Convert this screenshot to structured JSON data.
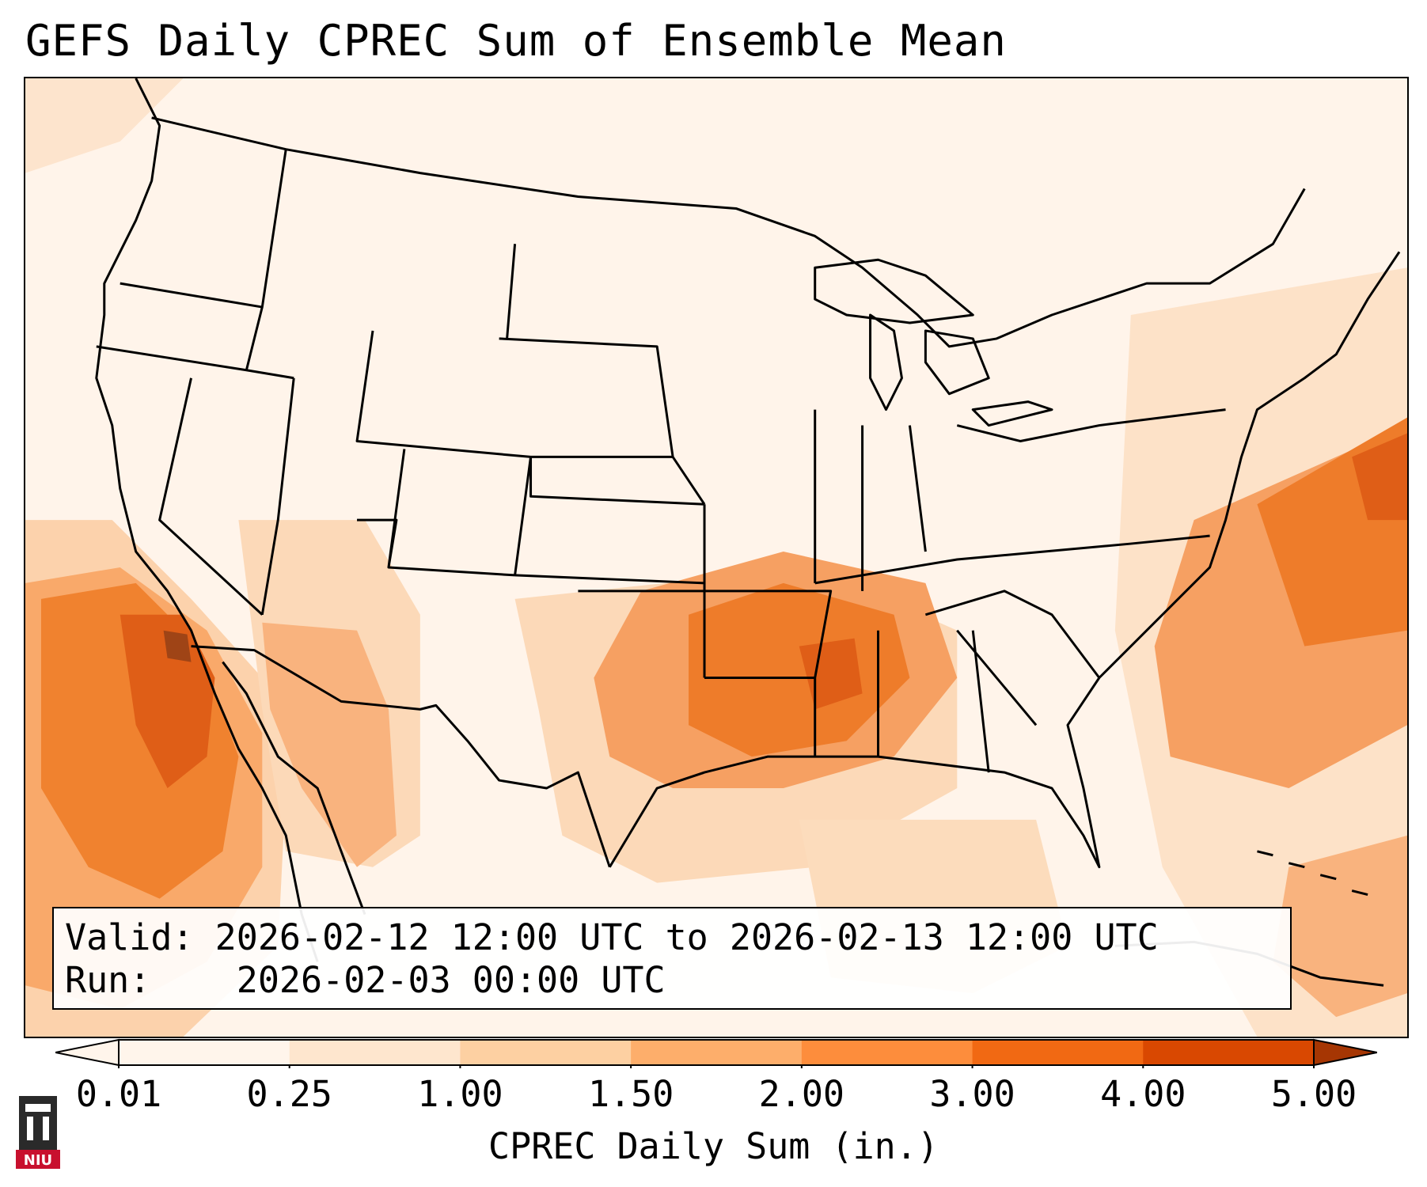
{
  "title": "GEFS Daily CPREC Sum of Ensemble Mean",
  "info": {
    "valid_label": "Valid:",
    "valid_value": "2026-02-12 12:00 UTC to 2026-02-13 12:00 UTC",
    "run_label": "Run:",
    "run_value": "2026-02-03 00:00 UTC"
  },
  "colorbar": {
    "label": "CPREC Daily Sum (in.)",
    "ticks": [
      "0.01",
      "0.25",
      "1.00",
      "1.50",
      "2.00",
      "3.00",
      "4.00",
      "5.00"
    ],
    "colors": [
      "#fff5eb",
      "#fee6ce",
      "#fdd0a2",
      "#fdae6b",
      "#fd8d3c",
      "#f16913",
      "#d94801",
      "#a63603"
    ],
    "extend": "both"
  },
  "legend_colors": {
    "background": "#fff4ea",
    "light": "#fde8d4",
    "medium": "#fcc99c",
    "strong": "#f9a56a",
    "heavy": "#f4843a",
    "intense": "#e0601a",
    "extreme": "#b24a1c"
  },
  "logo": {
    "name": "NIU"
  }
}
